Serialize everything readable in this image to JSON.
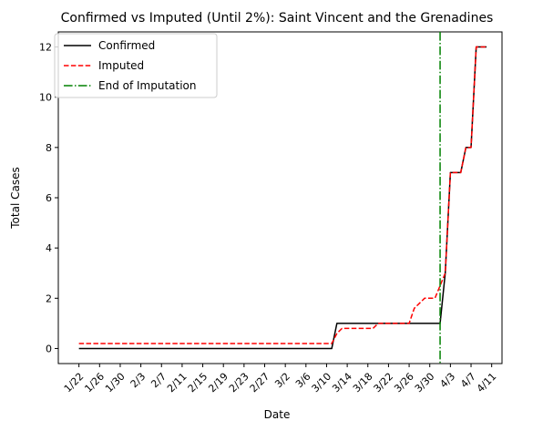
{
  "chart_data": {
    "type": "line",
    "title": "Confirmed vs Imputed (Until 2%): Saint Vincent and the Grenadines",
    "xlabel": "Date",
    "ylabel": "Total Cases",
    "x_tick_labels": [
      "1/22",
      "1/26",
      "1/30",
      "2/3",
      "2/7",
      "2/11",
      "2/15",
      "2/19",
      "2/23",
      "2/27",
      "3/2",
      "3/6",
      "3/10",
      "3/14",
      "3/18",
      "3/22",
      "3/26",
      "3/30",
      "4/3",
      "4/7",
      "4/11"
    ],
    "y_ticks": [
      0,
      2,
      4,
      6,
      8,
      10,
      12
    ],
    "ylim": [
      -0.6,
      12.6
    ],
    "xlim": [
      "1/18",
      "4/13"
    ],
    "legend_position": "top-left",
    "grid": false,
    "series": [
      {
        "name": "Confirmed",
        "color": "#000000",
        "style": "solid",
        "points": [
          [
            "1/22",
            0
          ],
          [
            "3/11",
            0
          ],
          [
            "3/12",
            1
          ],
          [
            "4/1",
            1
          ],
          [
            "4/2",
            3
          ],
          [
            "4/3",
            7
          ],
          [
            "4/5",
            7
          ],
          [
            "4/6",
            8
          ],
          [
            "4/7",
            8
          ],
          [
            "4/8",
            12
          ],
          [
            "4/10",
            12
          ]
        ]
      },
      {
        "name": "Imputed",
        "color": "#ff0000",
        "style": "dashed",
        "points": [
          [
            "1/22",
            0.2
          ],
          [
            "3/11",
            0.2
          ],
          [
            "3/12",
            0.6
          ],
          [
            "3/13",
            0.8
          ],
          [
            "3/19",
            0.8
          ],
          [
            "3/20",
            1
          ],
          [
            "3/26",
            1
          ],
          [
            "3/27",
            1.6
          ],
          [
            "3/28",
            1.8
          ],
          [
            "3/29",
            2
          ],
          [
            "3/31",
            2
          ],
          [
            "4/1",
            2.5
          ],
          [
            "4/2",
            3
          ],
          [
            "4/3",
            7
          ],
          [
            "4/5",
            7
          ],
          [
            "4/6",
            8
          ],
          [
            "4/7",
            8
          ],
          [
            "4/8",
            12
          ],
          [
            "4/10",
            12
          ]
        ]
      },
      {
        "name": "End of Imputation",
        "color": "#008000",
        "style": "dashdot",
        "vertical_line_x": "4/1"
      }
    ]
  }
}
